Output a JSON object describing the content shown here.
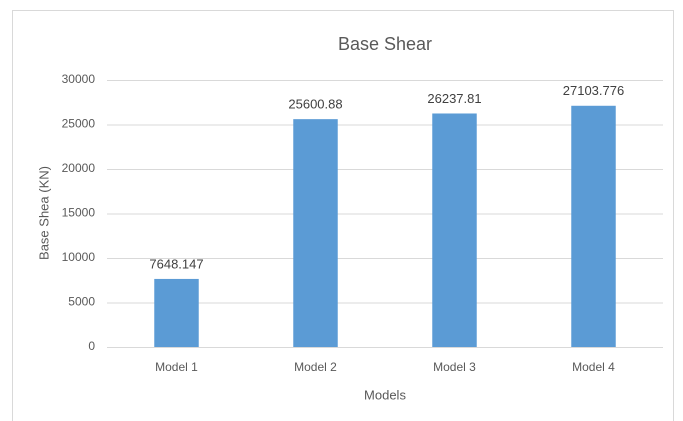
{
  "chart_data": {
    "type": "bar",
    "title": "Base Shear",
    "x_label": "Models",
    "y_label": "Base Shea (KN)",
    "categories": [
      "Model 1",
      "Model 2",
      "Model 3",
      "Model 4"
    ],
    "values": [
      7648.147,
      25600.88,
      26237.81,
      27103.776
    ],
    "color": "#5b9bd5",
    "ylim": [
      0,
      30000
    ],
    "yticks": [
      0,
      5000,
      10000,
      15000,
      20000,
      25000,
      30000
    ],
    "grid": true
  }
}
